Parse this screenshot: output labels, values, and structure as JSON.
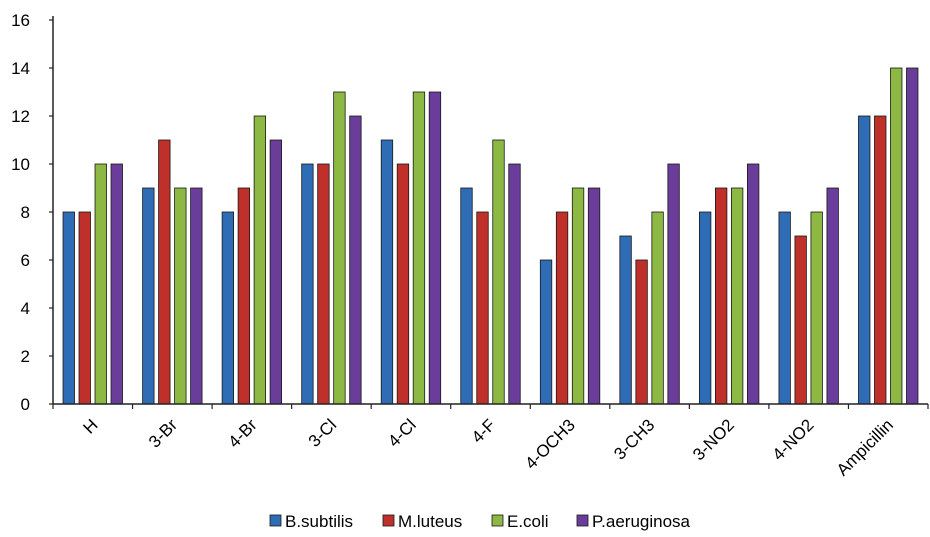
{
  "chart_data": {
    "type": "bar",
    "categories": [
      "H",
      "3-Br",
      "4-Br",
      "3-Cl",
      "4-Cl",
      "4-F",
      "4-OCH3",
      "3-CH3",
      "3-NO2",
      "4-NO2",
      "Ampicillin"
    ],
    "series": [
      {
        "name": "B.subtilis",
        "color": "#2E6CB5",
        "values": [
          8,
          9,
          8,
          10,
          11,
          9,
          6,
          7,
          8,
          8,
          12
        ]
      },
      {
        "name": "M.luteus",
        "color": "#C0302B",
        "values": [
          8,
          11,
          9,
          10,
          10,
          8,
          8,
          6,
          9,
          7,
          12
        ]
      },
      {
        "name": "E.coli",
        "color": "#8DB843",
        "values": [
          10,
          9,
          12,
          13,
          13,
          11,
          9,
          8,
          9,
          8,
          14
        ]
      },
      {
        "name": "P.aeruginosa",
        "color": "#6A3D9A",
        "values": [
          10,
          9,
          11,
          12,
          13,
          10,
          9,
          10,
          10,
          9,
          14
        ]
      }
    ],
    "title": "",
    "xlabel": "",
    "ylabel": "",
    "ylim": [
      0,
      16
    ],
    "yticks": [
      "0",
      "2",
      "4",
      "6",
      "8",
      "10",
      "12",
      "14",
      "16"
    ],
    "grid": false,
    "legend_position": "bottom"
  }
}
